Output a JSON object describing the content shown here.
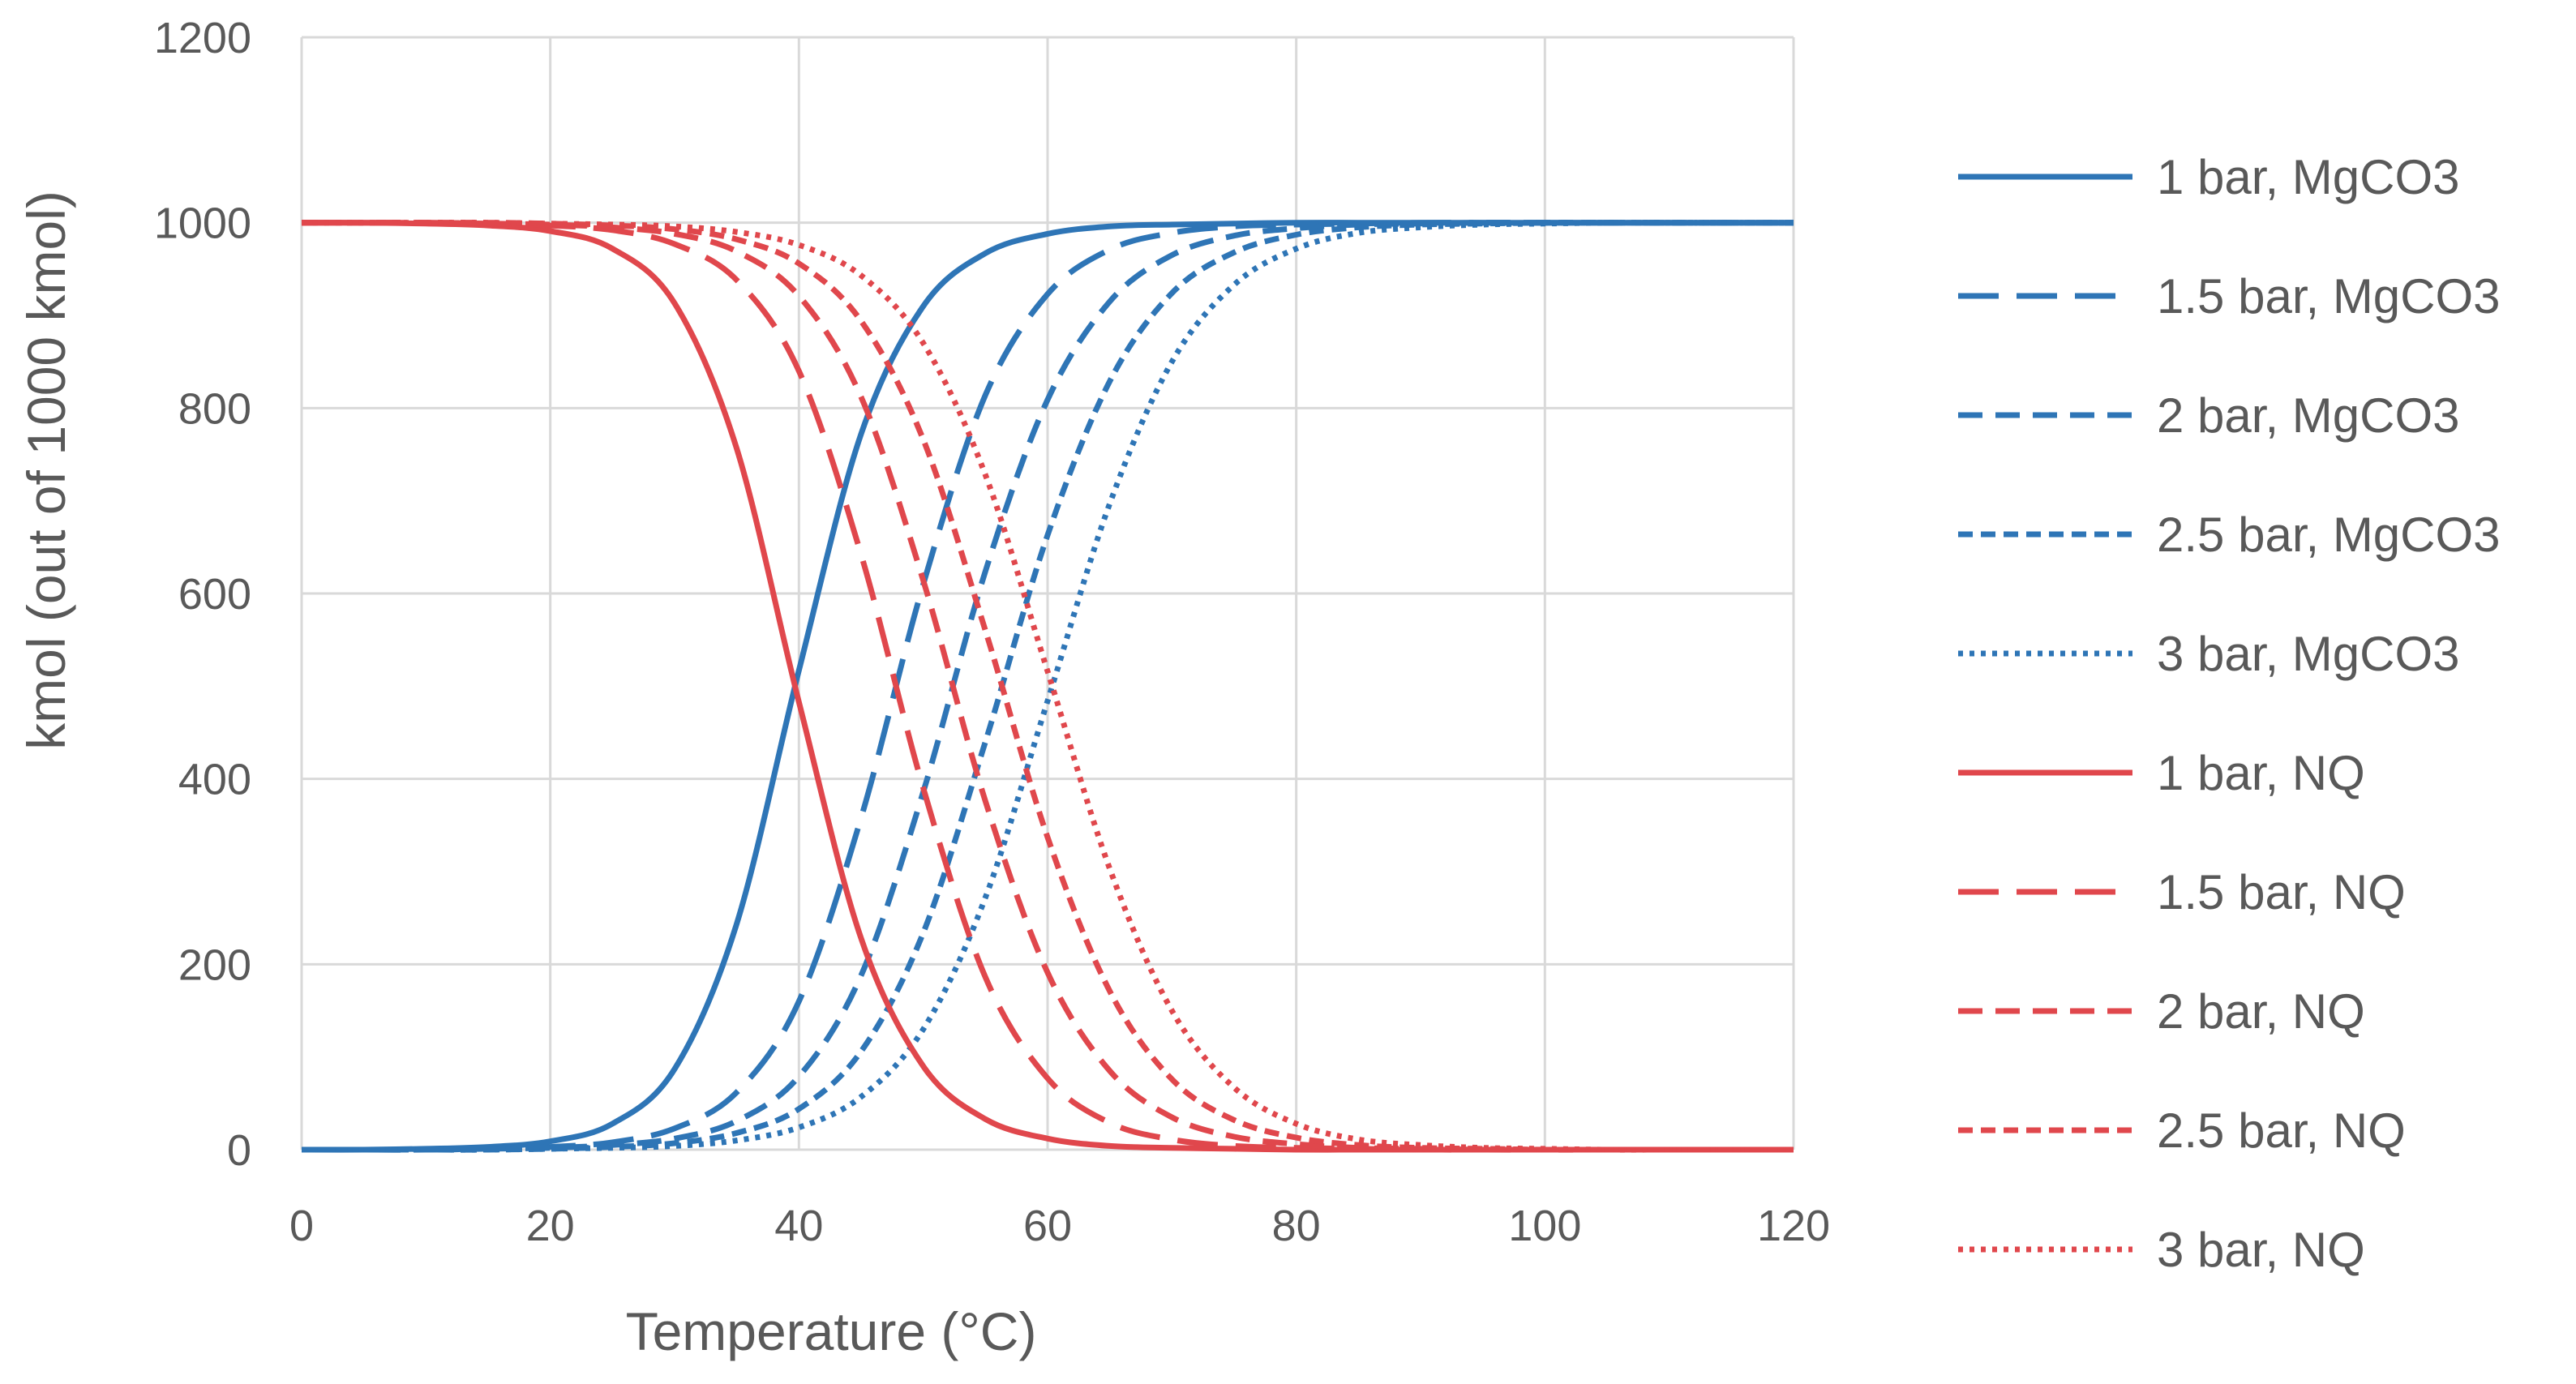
{
  "chart_data": {
    "type": "line",
    "title": "",
    "xlabel": "Temperature (°C)",
    "ylabel": "kmol (out of 1000 kmol)",
    "xlim": [
      0,
      120
    ],
    "ylim": [
      0,
      1200
    ],
    "xticks": [
      "0",
      "20",
      "40",
      "60",
      "80",
      "100",
      "120"
    ],
    "yticks": [
      "0",
      "200",
      "400",
      "600",
      "800",
      "1000",
      "1200"
    ],
    "grid": true,
    "legend_position": "right",
    "x": [
      0,
      5,
      10,
      15,
      20,
      25,
      30,
      35,
      40,
      45,
      50,
      55,
      60,
      65,
      70,
      75,
      80,
      85,
      90,
      95,
      100,
      105,
      110,
      115,
      120
    ],
    "series": [
      {
        "name": "1 bar, MgCO3",
        "color": "#2E75B6",
        "dash": "solid",
        "values": [
          0,
          0,
          1,
          3,
          9,
          28,
          87,
          244,
          517,
          772,
          910,
          967,
          988,
          996,
          998,
          999,
          1000,
          1000,
          1000,
          1000,
          1000,
          1000,
          1000,
          1000,
          1000
        ]
      },
      {
        "name": "1.5 bar, MgCO3",
        "color": "#2E75B6",
        "dash": "long-dash",
        "values": [
          0,
          0,
          0,
          1,
          3,
          8,
          23,
          62,
          160,
          358,
          610,
          814,
          923,
          971,
          989,
          996,
          998,
          999,
          1000,
          1000,
          1000,
          1000,
          1000,
          1000,
          1000
        ]
      },
      {
        "name": "2 bar, MgCO3",
        "color": "#2E75B6",
        "dash": "dash",
        "values": [
          0,
          0,
          0,
          1,
          2,
          5,
          12,
          31,
          79,
          188,
          386,
          624,
          809,
          915,
          965,
          986,
          994,
          998,
          999,
          1000,
          1000,
          1000,
          1000,
          1000,
          1000
        ]
      },
      {
        "name": "2.5 bar, MgCO3",
        "color": "#2E75B6",
        "dash": "short-dash",
        "values": [
          0,
          0,
          0,
          0,
          1,
          3,
          7,
          18,
          44,
          106,
          234,
          440,
          663,
          829,
          924,
          968,
          987,
          995,
          998,
          999,
          1000,
          1000,
          1000,
          1000,
          1000
        ]
      },
      {
        "name": "3 bar, MgCO3",
        "color": "#2E75B6",
        "dash": "dot",
        "values": [
          0,
          0,
          0,
          0,
          1,
          2,
          4,
          10,
          24,
          57,
          130,
          272,
          484,
          697,
          850,
          933,
          972,
          989,
          995,
          998,
          999,
          1000,
          1000,
          1000,
          1000
        ]
      },
      {
        "name": "1 bar, NQ",
        "color": "#E0474C",
        "dash": "solid",
        "values": [
          1000,
          1000,
          999,
          997,
          991,
          972,
          913,
          756,
          483,
          228,
          90,
          33,
          12,
          4,
          2,
          1,
          0,
          0,
          0,
          0,
          0,
          0,
          0,
          0,
          0
        ]
      },
      {
        "name": "1.5 bar, NQ",
        "color": "#E0474C",
        "dash": "long-dash",
        "values": [
          1000,
          1000,
          1000,
          999,
          997,
          992,
          977,
          938,
          840,
          642,
          390,
          186,
          77,
          29,
          11,
          4,
          2,
          1,
          0,
          0,
          0,
          0,
          0,
          0,
          0
        ]
      },
      {
        "name": "2 bar, NQ",
        "color": "#E0474C",
        "dash": "dash",
        "values": [
          1000,
          1000,
          1000,
          999,
          998,
          995,
          988,
          969,
          921,
          812,
          614,
          376,
          191,
          85,
          35,
          14,
          6,
          2,
          1,
          0,
          0,
          0,
          0,
          0,
          0
        ]
      },
      {
        "name": "2.5 bar, NQ",
        "color": "#E0474C",
        "dash": "short-dash",
        "values": [
          1000,
          1000,
          1000,
          1000,
          999,
          997,
          993,
          982,
          956,
          894,
          766,
          560,
          337,
          171,
          76,
          32,
          13,
          5,
          2,
          1,
          0,
          0,
          0,
          0,
          0
        ]
      },
      {
        "name": "3 bar, NQ",
        "color": "#E0474C",
        "dash": "dot",
        "values": [
          1000,
          1000,
          1000,
          1000,
          999,
          998,
          996,
          990,
          976,
          943,
          870,
          728,
          516,
          303,
          150,
          67,
          28,
          11,
          5,
          2,
          1,
          0,
          0,
          0,
          0
        ]
      }
    ]
  }
}
